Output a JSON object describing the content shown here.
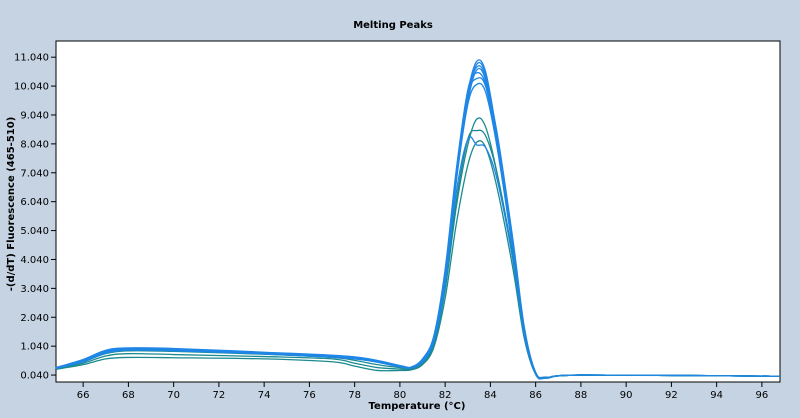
{
  "colors": {
    "background": "#c5d3e3",
    "plot_background": "#ffffff",
    "series_blue": "#1f86e6",
    "series_teal": "#1b8a8f"
  },
  "chart_data": {
    "type": "line",
    "title": "Melting Peaks",
    "xlabel": "Temperature (°C)",
    "ylabel": "-(d/dT) Fluorescence (465-510)",
    "xlim": [
      64.8,
      96.8
    ],
    "ylim": [
      -0.2,
      11.6
    ],
    "x_ticks": [
      66,
      68,
      70,
      72,
      74,
      76,
      78,
      80,
      82,
      84,
      86,
      88,
      90,
      92,
      94,
      96
    ],
    "x_tick_labels": [
      "66",
      "68",
      "70",
      "72",
      "74",
      "76",
      "78",
      "80",
      "82",
      "84",
      "86",
      "88",
      "90",
      "92",
      "94",
      "96"
    ],
    "y_ticks": [
      0.04,
      1.04,
      2.04,
      3.04,
      4.04,
      5.04,
      6.04,
      7.04,
      8.04,
      9.04,
      10.04,
      11.04
    ],
    "y_tick_labels": [
      "0.040",
      "1.040",
      "2.040",
      "3.040",
      "4.040",
      "5.040",
      "6.040",
      "7.040",
      "8.040",
      "9.040",
      "10.040",
      "11.040"
    ],
    "grid": false,
    "legend": "none",
    "series": [
      {
        "color": "#1f86e6",
        "points": [
          [
            64.8,
            0.28
          ],
          [
            66,
            0.55
          ],
          [
            67,
            0.85
          ],
          [
            68,
            0.96
          ],
          [
            70,
            0.93
          ],
          [
            74,
            0.8
          ],
          [
            78,
            0.65
          ],
          [
            80,
            0.35
          ],
          [
            80.5,
            0.3
          ],
          [
            81,
            0.55
          ],
          [
            81.5,
            1.3
          ],
          [
            82,
            3.5
          ],
          [
            82.5,
            7
          ],
          [
            83,
            9.8
          ],
          [
            83.4,
            10.9
          ],
          [
            83.8,
            10.5
          ],
          [
            84.3,
            8.3
          ],
          [
            85,
            4.5
          ],
          [
            85.5,
            1.5
          ],
          [
            86,
            0.1
          ],
          [
            86.5,
            -0.05
          ],
          [
            88,
            0.04
          ],
          [
            96.8,
            0.0
          ]
        ]
      },
      {
        "color": "#1f86e6",
        "points": [
          [
            64.8,
            0.27
          ],
          [
            66,
            0.52
          ],
          [
            67,
            0.82
          ],
          [
            68,
            0.93
          ],
          [
            70,
            0.9
          ],
          [
            74,
            0.78
          ],
          [
            78,
            0.62
          ],
          [
            80,
            0.33
          ],
          [
            80.5,
            0.3
          ],
          [
            81,
            0.5
          ],
          [
            81.5,
            1.2
          ],
          [
            82,
            3.3
          ],
          [
            82.5,
            6.8
          ],
          [
            83,
            9.6
          ],
          [
            83.4,
            10.8
          ],
          [
            83.8,
            10.4
          ],
          [
            84.3,
            8.2
          ],
          [
            85,
            4.4
          ],
          [
            85.5,
            1.4
          ],
          [
            86,
            0.08
          ],
          [
            86.5,
            -0.06
          ],
          [
            88,
            0.04
          ],
          [
            96.8,
            0.0
          ]
        ]
      },
      {
        "color": "#1f86e6",
        "points": [
          [
            64.8,
            0.29
          ],
          [
            66,
            0.57
          ],
          [
            67,
            0.88
          ],
          [
            68,
            0.97
          ],
          [
            70,
            0.94
          ],
          [
            74,
            0.82
          ],
          [
            78,
            0.66
          ],
          [
            80,
            0.36
          ],
          [
            80.5,
            0.31
          ],
          [
            81,
            0.58
          ],
          [
            81.5,
            1.35
          ],
          [
            82,
            3.6
          ],
          [
            82.5,
            7.1
          ],
          [
            83,
            9.7
          ],
          [
            83.4,
            10.7
          ],
          [
            83.8,
            10.3
          ],
          [
            84.3,
            8.1
          ],
          [
            85,
            4.6
          ],
          [
            85.5,
            1.6
          ],
          [
            86,
            0.12
          ],
          [
            86.5,
            -0.04
          ],
          [
            88,
            0.04
          ],
          [
            96.8,
            0.0
          ]
        ]
      },
      {
        "color": "#1f86e6",
        "points": [
          [
            64.8,
            0.26
          ],
          [
            66,
            0.5
          ],
          [
            67,
            0.8
          ],
          [
            68,
            0.92
          ],
          [
            70,
            0.9
          ],
          [
            74,
            0.77
          ],
          [
            78,
            0.6
          ],
          [
            80,
            0.32
          ],
          [
            80.5,
            0.28
          ],
          [
            81,
            0.5
          ],
          [
            81.5,
            1.25
          ],
          [
            82,
            3.4
          ],
          [
            82.5,
            6.9
          ],
          [
            83,
            9.5
          ],
          [
            83.4,
            10.6
          ],
          [
            83.8,
            10.2
          ],
          [
            84.3,
            8.0
          ],
          [
            85,
            4.3
          ],
          [
            85.5,
            1.4
          ],
          [
            86,
            0.06
          ],
          [
            86.5,
            -0.07
          ],
          [
            88,
            0.04
          ],
          [
            96.8,
            0.0
          ]
        ]
      },
      {
        "color": "#1f86e6",
        "points": [
          [
            64.8,
            0.3
          ],
          [
            66,
            0.58
          ],
          [
            67,
            0.9
          ],
          [
            68,
            0.98
          ],
          [
            70,
            0.96
          ],
          [
            74,
            0.83
          ],
          [
            78,
            0.67
          ],
          [
            80,
            0.37
          ],
          [
            80.5,
            0.32
          ],
          [
            81,
            0.6
          ],
          [
            81.5,
            1.4
          ],
          [
            82,
            3.7
          ],
          [
            82.5,
            7.2
          ],
          [
            83,
            9.9
          ],
          [
            83.4,
            10.5
          ],
          [
            83.8,
            10.1
          ],
          [
            84.3,
            8.4
          ],
          [
            85,
            4.7
          ],
          [
            85.5,
            1.7
          ],
          [
            86,
            0.14
          ],
          [
            86.5,
            -0.03
          ],
          [
            88,
            0.04
          ],
          [
            96.8,
            0.0
          ]
        ]
      },
      {
        "color": "#1f86e6",
        "points": [
          [
            64.8,
            0.27
          ],
          [
            66,
            0.53
          ],
          [
            67,
            0.84
          ],
          [
            68,
            0.95
          ],
          [
            70,
            0.92
          ],
          [
            74,
            0.79
          ],
          [
            78,
            0.63
          ],
          [
            80,
            0.34
          ],
          [
            80.5,
            0.29
          ],
          [
            81,
            0.52
          ],
          [
            81.5,
            1.3
          ],
          [
            82,
            3.5
          ],
          [
            82.5,
            6.9
          ],
          [
            83,
            9.7
          ],
          [
            83.4,
            10.3
          ],
          [
            83.8,
            10.0
          ],
          [
            84.3,
            8.0
          ],
          [
            85,
            4.4
          ],
          [
            85.5,
            1.5
          ],
          [
            86,
            0.1
          ],
          [
            86.5,
            -0.05
          ],
          [
            88,
            0.04
          ],
          [
            96.8,
            0.0
          ]
        ]
      },
      {
        "color": "#1f86e6",
        "points": [
          [
            64.8,
            0.28
          ],
          [
            66,
            0.54
          ],
          [
            67,
            0.86
          ],
          [
            68,
            0.96
          ],
          [
            70,
            0.93
          ],
          [
            74,
            0.81
          ],
          [
            78,
            0.64
          ],
          [
            80,
            0.35
          ],
          [
            80.5,
            0.3
          ],
          [
            81,
            0.55
          ],
          [
            81.5,
            1.3
          ],
          [
            82,
            3.4
          ],
          [
            82.5,
            6.8
          ],
          [
            83,
            9.4
          ],
          [
            83.4,
            10.1
          ],
          [
            83.8,
            9.8
          ],
          [
            84.3,
            7.9
          ],
          [
            85,
            4.3
          ],
          [
            85.5,
            1.45
          ],
          [
            86,
            0.09
          ],
          [
            86.5,
            -0.05
          ],
          [
            88,
            0.04
          ],
          [
            96.8,
            0.0
          ]
        ]
      },
      {
        "color": "#1b8a8f",
        "points": [
          [
            64.8,
            0.25
          ],
          [
            66,
            0.45
          ],
          [
            67,
            0.7
          ],
          [
            68,
            0.78
          ],
          [
            70,
            0.75
          ],
          [
            74,
            0.68
          ],
          [
            77,
            0.6
          ],
          [
            78,
            0.45
          ],
          [
            79,
            0.3
          ],
          [
            80,
            0.25
          ],
          [
            80.5,
            0.25
          ],
          [
            81,
            0.45
          ],
          [
            81.5,
            1.1
          ],
          [
            82,
            3.0
          ],
          [
            82.5,
            5.9
          ],
          [
            83,
            8.0
          ],
          [
            83.4,
            8.9
          ],
          [
            83.8,
            8.6
          ],
          [
            84.3,
            7.0
          ],
          [
            85,
            4.0
          ],
          [
            85.5,
            1.4
          ],
          [
            86,
            0.1
          ],
          [
            86.5,
            -0.05
          ],
          [
            88,
            0.04
          ],
          [
            96.8,
            0.0
          ]
        ]
      },
      {
        "color": "#1b8a8f",
        "points": [
          [
            64.8,
            0.24
          ],
          [
            66,
            0.4
          ],
          [
            67,
            0.6
          ],
          [
            68,
            0.65
          ],
          [
            70,
            0.64
          ],
          [
            74,
            0.6
          ],
          [
            77,
            0.5
          ],
          [
            78,
            0.35
          ],
          [
            79,
            0.2
          ],
          [
            80,
            0.2
          ],
          [
            80.5,
            0.22
          ],
          [
            81,
            0.4
          ],
          [
            81.5,
            1.0
          ],
          [
            82,
            2.7
          ],
          [
            82.5,
            5.3
          ],
          [
            83,
            7.3
          ],
          [
            83.4,
            8.1
          ],
          [
            83.8,
            7.9
          ],
          [
            84.3,
            6.5
          ],
          [
            85,
            3.7
          ],
          [
            85.5,
            1.3
          ],
          [
            86,
            0.08
          ],
          [
            86.5,
            -0.06
          ],
          [
            88,
            0.04
          ],
          [
            96.8,
            0.0
          ]
        ]
      },
      {
        "color": "#1b8a8f",
        "points": [
          [
            64.8,
            0.26
          ],
          [
            66,
            0.5
          ],
          [
            67,
            0.78
          ],
          [
            68,
            0.88
          ],
          [
            70,
            0.86
          ],
          [
            74,
            0.76
          ],
          [
            77,
            0.65
          ],
          [
            78,
            0.55
          ],
          [
            79,
            0.4
          ],
          [
            80,
            0.3
          ],
          [
            80.5,
            0.28
          ],
          [
            81,
            0.48
          ],
          [
            81.5,
            1.15
          ],
          [
            82,
            3.1
          ],
          [
            82.5,
            6.1
          ],
          [
            83,
            8.2
          ],
          [
            83.4,
            8.5
          ],
          [
            83.8,
            8.3
          ],
          [
            84.3,
            7.0
          ],
          [
            85,
            4.1
          ],
          [
            85.5,
            1.45
          ],
          [
            86,
            0.1
          ],
          [
            86.5,
            -0.05
          ],
          [
            88,
            0.04
          ],
          [
            96.8,
            0.0
          ]
        ]
      },
      {
        "color": "#1f86e6",
        "points": [
          [
            64.8,
            0.27
          ],
          [
            66,
            0.5
          ],
          [
            67,
            0.8
          ],
          [
            68,
            0.9
          ],
          [
            70,
            0.88
          ],
          [
            74,
            0.77
          ],
          [
            78,
            0.6
          ],
          [
            80,
            0.33
          ],
          [
            80.5,
            0.28
          ],
          [
            81,
            0.5
          ],
          [
            81.5,
            1.2
          ],
          [
            82,
            3.2
          ],
          [
            82.5,
            6.4
          ],
          [
            83,
            8.2
          ],
          [
            83.4,
            8.0
          ],
          [
            83.8,
            7.9
          ],
          [
            84.3,
            6.8
          ],
          [
            85,
            4.0
          ],
          [
            85.5,
            1.4
          ],
          [
            86,
            0.08
          ],
          [
            86.5,
            -0.06
          ],
          [
            88,
            0.04
          ],
          [
            96.8,
            0.0
          ]
        ]
      }
    ]
  }
}
